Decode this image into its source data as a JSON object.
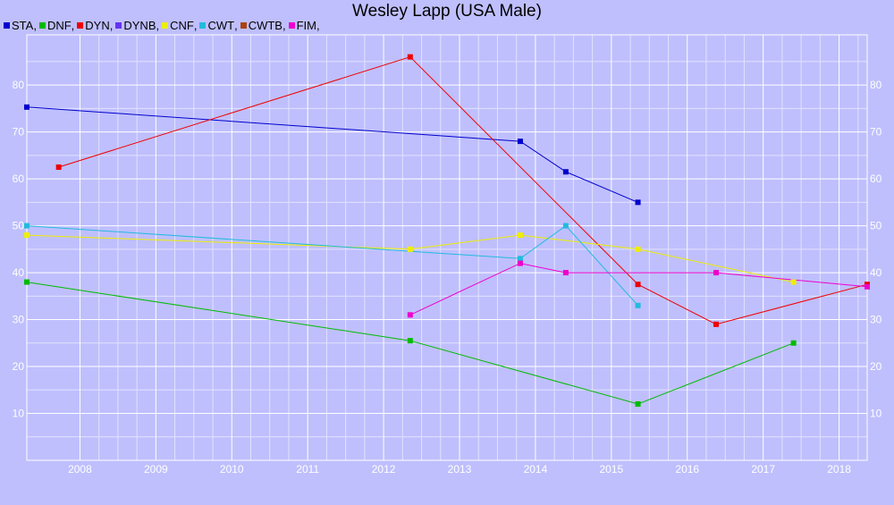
{
  "chart_data": {
    "type": "line",
    "title": "Wesley Lapp (USA Male)",
    "xlabel": "",
    "ylabel": "",
    "xlim": [
      2007.3,
      2018.37
    ],
    "ylim": [
      0,
      90.7
    ],
    "x_ticks": [
      2008,
      2009,
      2010,
      2011,
      2012,
      2013,
      2014,
      2015,
      2016,
      2017,
      2018
    ],
    "y_ticks": [
      10,
      20,
      30,
      40,
      50,
      60,
      70,
      80
    ],
    "grid": true,
    "legend_position": "top-left",
    "series": [
      {
        "name": "STA",
        "color": "#0000cc",
        "points": [
          [
            2007.3,
            75.3
          ],
          [
            2013.8,
            68
          ],
          [
            2014.4,
            61.5
          ],
          [
            2015.35,
            55
          ]
        ]
      },
      {
        "name": "DNF",
        "color": "#00bb00",
        "points": [
          [
            2007.3,
            38
          ],
          [
            2012.35,
            25.5
          ],
          [
            2015.35,
            12
          ],
          [
            2017.4,
            25
          ]
        ]
      },
      {
        "name": "DYN",
        "color": "#ee0000",
        "points": [
          [
            2007.72,
            62.5
          ],
          [
            2012.35,
            86
          ],
          [
            2015.35,
            37.5
          ],
          [
            2016.38,
            29
          ],
          [
            2018.37,
            37.5
          ]
        ]
      },
      {
        "name": "DYNB",
        "color": "#6633ee",
        "points": []
      },
      {
        "name": "CNF",
        "color": "#eeee00",
        "points": [
          [
            2007.3,
            48
          ],
          [
            2012.35,
            45
          ],
          [
            2013.8,
            48
          ],
          [
            2015.35,
            45
          ],
          [
            2017.4,
            38
          ]
        ]
      },
      {
        "name": "CWT",
        "color": "#22bbdd",
        "points": [
          [
            2007.3,
            50
          ],
          [
            2013.8,
            43
          ],
          [
            2014.4,
            50
          ],
          [
            2015.35,
            33
          ]
        ]
      },
      {
        "name": "CWTB",
        "color": "#aa4411",
        "points": []
      },
      {
        "name": "FIM",
        "color": "#ee00cc",
        "points": [
          [
            2012.35,
            31
          ],
          [
            2013.8,
            42
          ],
          [
            2014.4,
            40
          ],
          [
            2016.38,
            40
          ],
          [
            2018.37,
            37
          ]
        ]
      }
    ]
  }
}
